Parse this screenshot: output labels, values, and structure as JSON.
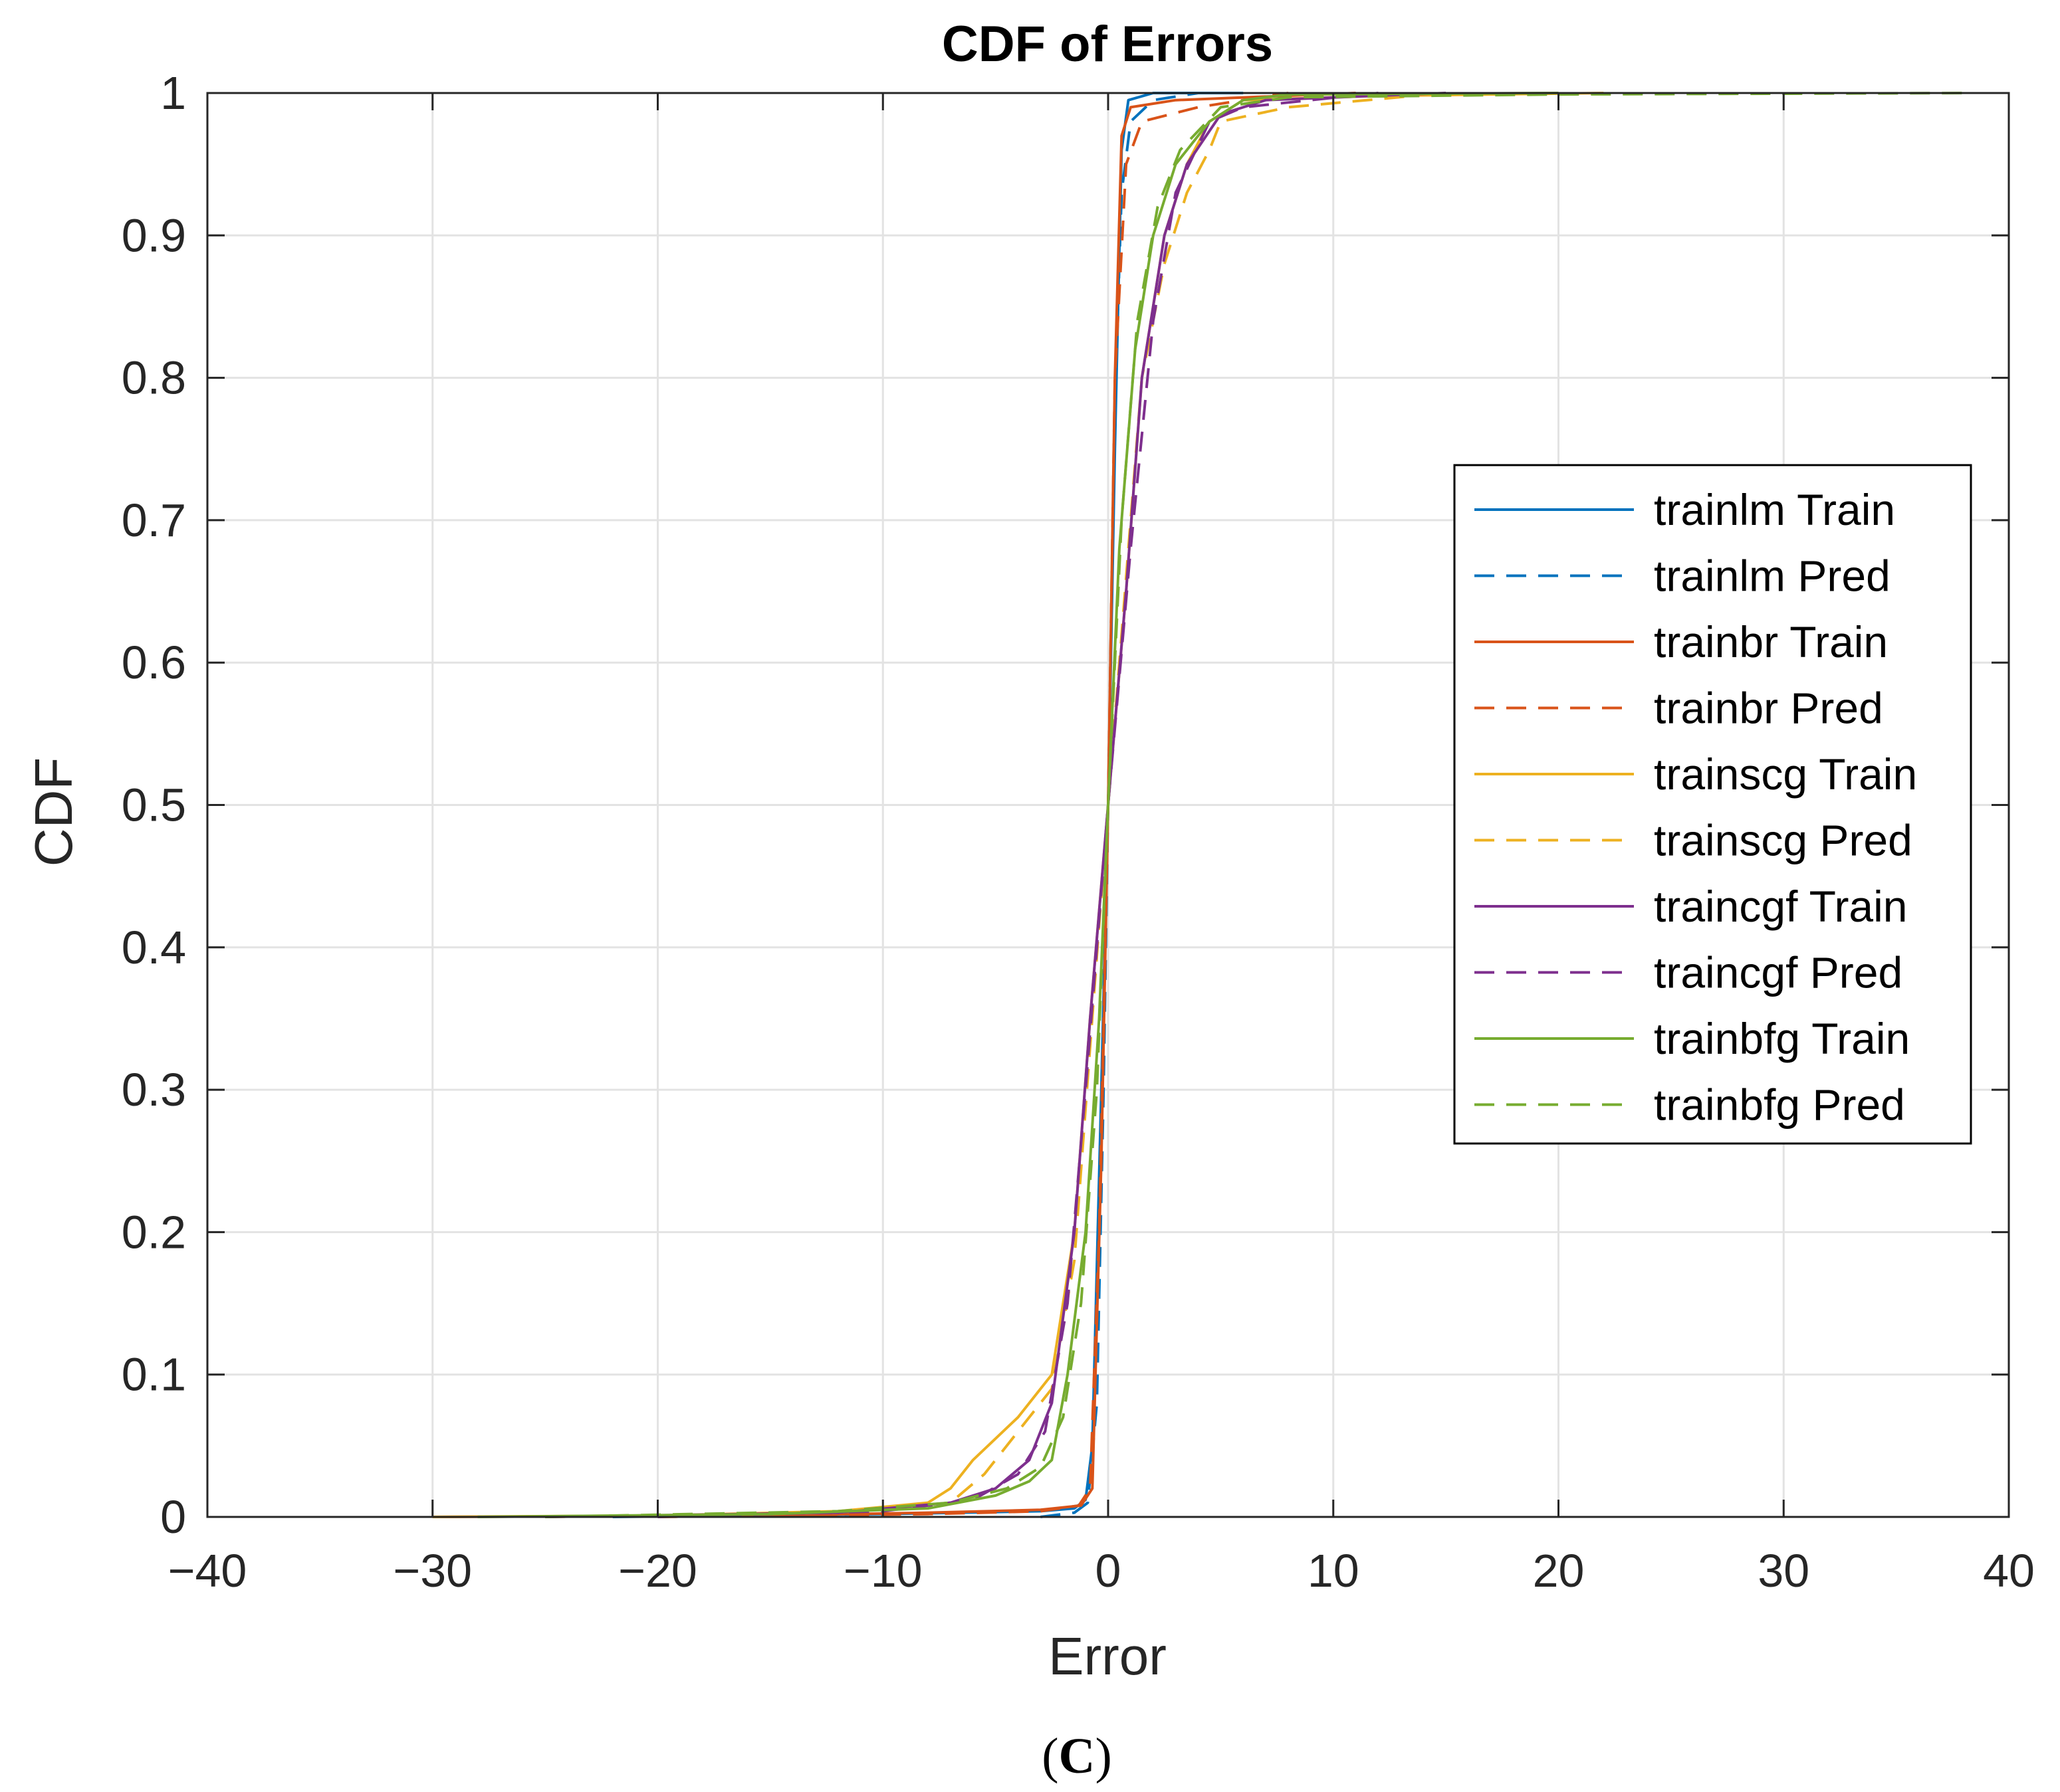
{
  "chart_data": {
    "type": "line",
    "title": "CDF of Errors",
    "xlabel": "Error",
    "ylabel": "CDF",
    "xlim": [
      -40,
      40
    ],
    "ylim": [
      0,
      1
    ],
    "xticks": [
      -40,
      -30,
      -20,
      -10,
      0,
      10,
      20,
      30,
      40
    ],
    "xtick_labels": [
      "−40",
      "−30",
      "−20",
      "−10",
      "0",
      "10",
      "20",
      "30",
      "40"
    ],
    "yticks": [
      0,
      0.1,
      0.2,
      0.3,
      0.4,
      0.5,
      0.6,
      0.7,
      0.8,
      0.9,
      1
    ],
    "ytick_labels": [
      "0",
      "0.1",
      "0.2",
      "0.3",
      "0.4",
      "0.5",
      "0.6",
      "0.7",
      "0.8",
      "0.9",
      "1"
    ],
    "grid": true,
    "legend_position": "right",
    "series": [
      {
        "name": "trainlm Train",
        "color": "#0072BD",
        "dash": "solid",
        "x": [
          -22,
          -10,
          -3,
          -1.5,
          -1.0,
          -0.7,
          -0.3,
          0,
          0.3,
          0.6,
          0.9,
          2,
          6
        ],
        "y": [
          0,
          0.002,
          0.004,
          0.006,
          0.012,
          0.05,
          0.3,
          0.5,
          0.75,
          0.96,
          0.995,
          1.0,
          1.0
        ]
      },
      {
        "name": "trainlm Pred",
        "color": "#0072BD",
        "dash": "dashed",
        "x": [
          -3,
          -1.5,
          -0.9,
          -0.5,
          -0.2,
          0,
          0.3,
          0.6,
          1.0,
          2,
          4,
          6
        ],
        "y": [
          0,
          0.003,
          0.01,
          0.08,
          0.3,
          0.5,
          0.78,
          0.93,
          0.98,
          0.995,
          1.0,
          1.0
        ]
      },
      {
        "name": "trainbr Train",
        "color": "#D95319",
        "dash": "solid",
        "x": [
          -30,
          -15,
          -8,
          -3,
          -1.2,
          -0.7,
          -0.3,
          0,
          0.3,
          0.6,
          1.0,
          3,
          11
        ],
        "y": [
          0,
          0.001,
          0.003,
          0.005,
          0.008,
          0.02,
          0.25,
          0.5,
          0.8,
          0.97,
          0.99,
          0.995,
          1.0
        ]
      },
      {
        "name": "trainbr Pred",
        "color": "#D95319",
        "dash": "dashed",
        "x": [
          -20,
          -8,
          -3,
          -1.3,
          -0.8,
          -0.4,
          0,
          0.3,
          0.8,
          1.5,
          4,
          8
        ],
        "y": [
          0,
          0.002,
          0.004,
          0.008,
          0.02,
          0.2,
          0.5,
          0.8,
          0.95,
          0.98,
          0.99,
          1.0
        ]
      },
      {
        "name": "trainscg Train",
        "color": "#EDB120",
        "dash": "solid",
        "x": [
          -30,
          -20,
          -12,
          -8,
          -7,
          -6,
          -4,
          -2.5,
          -1.5,
          -0.8,
          0,
          0.8,
          1.5,
          2.5,
          3.5,
          4.5,
          6,
          12,
          22
        ],
        "y": [
          0,
          0.001,
          0.004,
          0.01,
          0.02,
          0.04,
          0.07,
          0.1,
          0.2,
          0.35,
          0.5,
          0.65,
          0.8,
          0.9,
          0.95,
          0.98,
          0.995,
          0.998,
          1.0
        ]
      },
      {
        "name": "trainscg Pred",
        "color": "#EDB120",
        "dash": "dashed",
        "x": [
          -25,
          -12,
          -7,
          -5.5,
          -4,
          -2.5,
          -1.5,
          -0.8,
          0,
          0.8,
          1.5,
          2.5,
          3.5,
          4.5,
          5,
          8,
          15
        ],
        "y": [
          0,
          0.003,
          0.01,
          0.03,
          0.06,
          0.09,
          0.18,
          0.33,
          0.5,
          0.66,
          0.8,
          0.88,
          0.93,
          0.96,
          0.98,
          0.99,
          1.0
        ]
      },
      {
        "name": "traincgf Train",
        "color": "#7E2F8E",
        "dash": "solid",
        "x": [
          -25,
          -12,
          -7,
          -5,
          -3.5,
          -2.5,
          -1.5,
          -0.8,
          0,
          0.8,
          1.5,
          2.5,
          3.5,
          5,
          7,
          15
        ],
        "y": [
          0,
          0.003,
          0.01,
          0.02,
          0.04,
          0.08,
          0.2,
          0.35,
          0.5,
          0.65,
          0.8,
          0.9,
          0.95,
          0.985,
          0.995,
          1.0
        ]
      },
      {
        "name": "traincgf Pred",
        "color": "#7E2F8E",
        "dash": "dashed",
        "x": [
          -20,
          -10,
          -6,
          -4,
          -2.8,
          -1.8,
          -1,
          0,
          1,
          2,
          3,
          4.5,
          6,
          12
        ],
        "y": [
          0,
          0.004,
          0.012,
          0.03,
          0.06,
          0.15,
          0.3,
          0.5,
          0.68,
          0.84,
          0.93,
          0.98,
          0.99,
          1.0
        ]
      },
      {
        "name": "trainbfg Train",
        "color": "#77AC30",
        "dash": "solid",
        "x": [
          -28,
          -15,
          -8,
          -5,
          -3.5,
          -2.5,
          -1.8,
          -1,
          -0.4,
          0,
          0.5,
          1.2,
          2,
          3,
          4.5,
          6,
          8,
          20
        ],
        "y": [
          0,
          0.002,
          0.006,
          0.015,
          0.025,
          0.04,
          0.1,
          0.2,
          0.35,
          0.5,
          0.68,
          0.82,
          0.9,
          0.95,
          0.98,
          0.995,
          0.999,
          1.0
        ]
      },
      {
        "name": "trainbfg Pred",
        "color": "#77AC30",
        "dash": "dashed",
        "x": [
          -25,
          -12,
          -7,
          -4.5,
          -3,
          -2,
          -1.2,
          -0.5,
          0,
          0.6,
          1.3,
          2.2,
          3.2,
          5,
          8,
          20,
          38
        ],
        "y": [
          0,
          0.004,
          0.01,
          0.02,
          0.035,
          0.07,
          0.15,
          0.3,
          0.5,
          0.7,
          0.84,
          0.92,
          0.96,
          0.99,
          0.997,
          0.999,
          1.0
        ]
      }
    ]
  },
  "caption": {
    "open": "(",
    "letter": "C",
    "close": ")"
  }
}
